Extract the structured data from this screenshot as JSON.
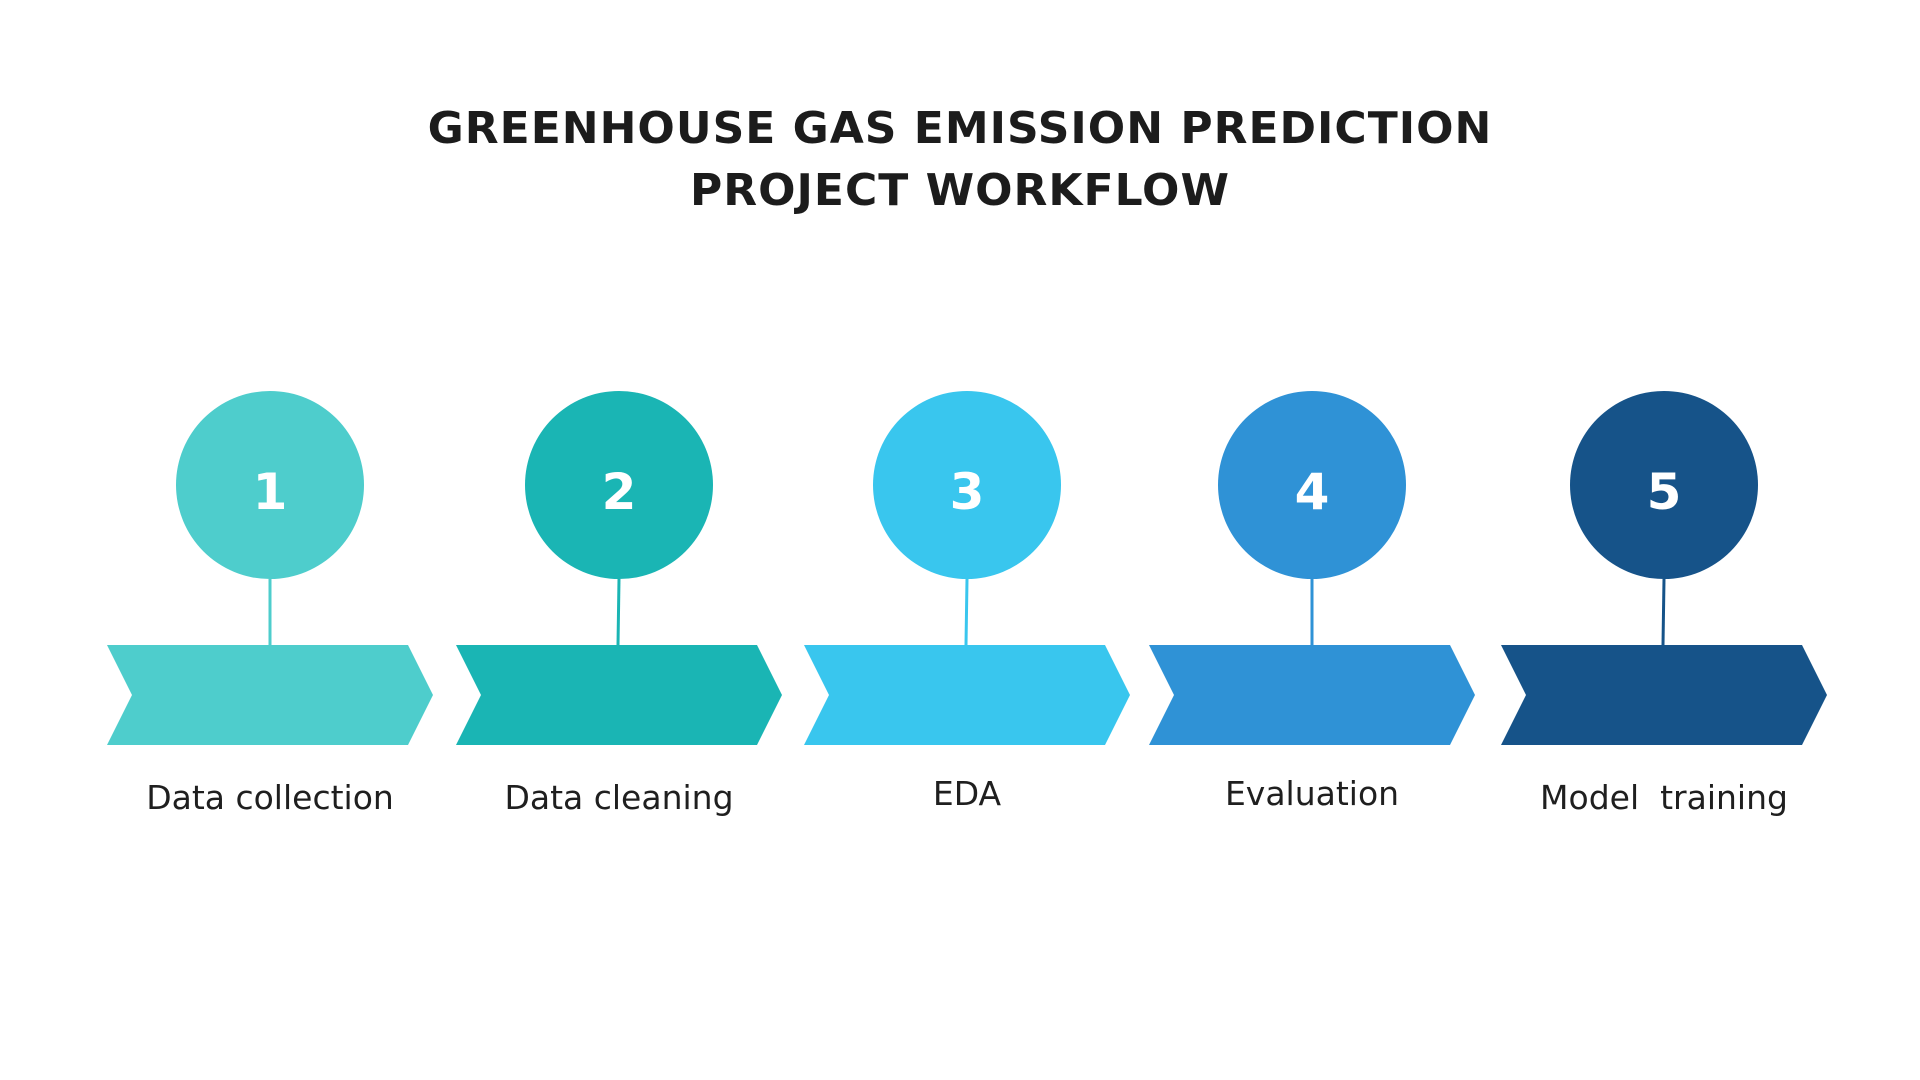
{
  "title": {
    "line1": "GREENHOUSE GAS EMISSION PREDICTION",
    "line2": "PROJECT WORKFLOW"
  },
  "steps": [
    {
      "number": "1",
      "label": "Data collection",
      "color": "#4ecdcc"
    },
    {
      "number": "2",
      "label": "Data cleaning",
      "color": "#1ab5b4"
    },
    {
      "number": "3",
      "label": "EDA",
      "color": "#39c6ee"
    },
    {
      "number": "4",
      "label": "Evaluation",
      "color": "#2f92d6"
    },
    {
      "number": "5",
      "label": "Model  training",
      "color": "#165389"
    }
  ]
}
